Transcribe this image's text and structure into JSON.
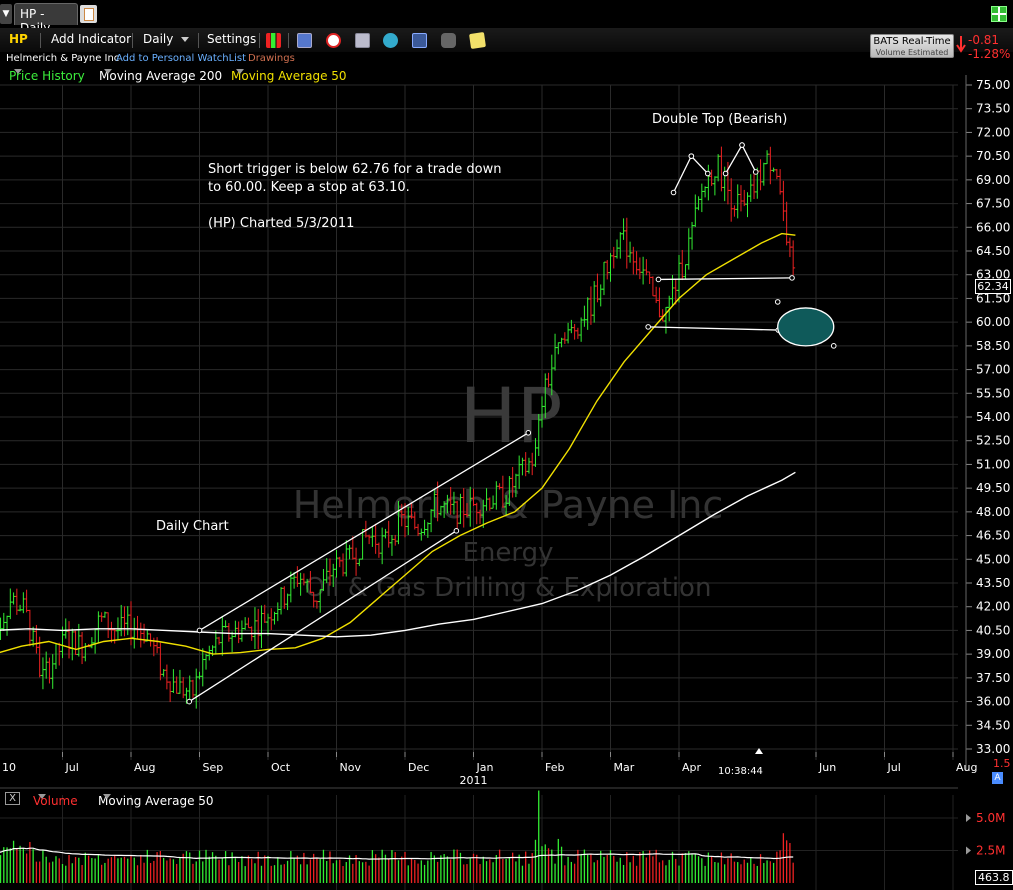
{
  "tab": {
    "title": "HP - Daily"
  },
  "toolbar": {
    "symbol": "HP",
    "add_indicator": "Add Indicator",
    "timeframe": "Daily",
    "settings": "Settings"
  },
  "subheader": {
    "company": "Helmerich & Payne Inc",
    "add_watchlist": "Add to Personal WatchList",
    "drawings": "Drawings"
  },
  "indicators": {
    "price_history": "Price History",
    "ma200": "Moving Average 200",
    "ma50": "Moving Average 50"
  },
  "realtime": {
    "label": "BATS Real-Time",
    "sub": "Volume Estimated",
    "change": "-0.81",
    "change_pct": "-1.28%"
  },
  "last_price": "62.34",
  "clock": "10:38:44",
  "watermark": {
    "symbol": "HP",
    "name": "Helmerich & Payne Inc",
    "sector": "Energy",
    "industry": "Oil & Gas Drilling & Exploration"
  },
  "annotations": {
    "pattern": "Double Top (Bearish)",
    "trigger_line1": "Short trigger is below 62.76 for a trade down",
    "trigger_line2": "to 60.00.  Keep a stop at 63.10.",
    "charted": "(HP) Charted 5/3/2011",
    "daily": "Daily Chart"
  },
  "volume_panel": {
    "label": "Volume",
    "ma": "Moving Average 50",
    "ticks": [
      "5.0M",
      "2.5M"
    ],
    "last": "463.8",
    "top_value": "1.5",
    "badge": "A"
  },
  "colors": {
    "up": "#33ee33",
    "down": "#ee2222",
    "ma50": "#f0e000",
    "ma200": "#ffffff",
    "target": "#0f5a5a"
  },
  "chart_data": {
    "type": "candlestick",
    "title": "HP - Daily",
    "y_ticks": [
      "75.00",
      "73.50",
      "72.00",
      "70.50",
      "69.00",
      "67.50",
      "66.00",
      "64.50",
      "63.00",
      "61.50",
      "60.00",
      "58.50",
      "57.00",
      "55.50",
      "54.00",
      "52.50",
      "51.00",
      "49.50",
      "48.00",
      "46.50",
      "45.00",
      "43.50",
      "42.00",
      "40.50",
      "39.00",
      "37.50",
      "36.00",
      "34.50",
      "33.00"
    ],
    "ylim": [
      33.0,
      75.0
    ],
    "x_ticks": [
      {
        "label": "10",
        "month": 0
      },
      {
        "label": "Jul",
        "month": 1
      },
      {
        "label": "Aug",
        "month": 2
      },
      {
        "label": "Sep",
        "month": 3
      },
      {
        "label": "Oct",
        "month": 4
      },
      {
        "label": "Nov",
        "month": 5
      },
      {
        "label": "Dec",
        "month": 6
      },
      {
        "label": "Jan",
        "month": 7
      },
      {
        "label": "Feb",
        "month": 8
      },
      {
        "label": "Mar",
        "month": 9
      },
      {
        "label": "Apr",
        "month": 10
      },
      {
        "label": "Jun",
        "month": 12
      },
      {
        "label": "Jul",
        "month": 13
      },
      {
        "label": "Aug",
        "month": 14
      }
    ],
    "year_label": "2011",
    "price_path": [
      [
        0.0,
        40.0
      ],
      [
        0.25,
        42.5
      ],
      [
        0.45,
        41.8
      ],
      [
        0.7,
        37.5
      ],
      [
        0.85,
        38.5
      ],
      [
        1.05,
        40.0
      ],
      [
        1.3,
        39.5
      ],
      [
        1.55,
        41.2
      ],
      [
        1.8,
        40.5
      ],
      [
        2.05,
        40.8
      ],
      [
        2.25,
        40.2
      ],
      [
        2.45,
        38.0
      ],
      [
        2.65,
        37.0
      ],
      [
        2.9,
        36.5
      ],
      [
        3.05,
        38.5
      ],
      [
        3.3,
        40.0
      ],
      [
        3.55,
        40.5
      ],
      [
        3.8,
        40.8
      ],
      [
        4.0,
        41.5
      ],
      [
        4.2,
        42.5
      ],
      [
        4.45,
        44.0
      ],
      [
        4.7,
        42.5
      ],
      [
        4.95,
        44.5
      ],
      [
        5.2,
        45.0
      ],
      [
        5.45,
        46.5
      ],
      [
        5.7,
        46.0
      ],
      [
        5.95,
        47.5
      ],
      [
        6.2,
        47.0
      ],
      [
        6.45,
        48.5
      ],
      [
        6.7,
        48.0
      ],
      [
        6.95,
        48.3
      ],
      [
        7.2,
        48.8
      ],
      [
        7.45,
        49.0
      ],
      [
        7.7,
        50.5
      ],
      [
        7.9,
        51.5
      ],
      [
        8.0,
        55.0
      ],
      [
        8.2,
        58.0
      ],
      [
        8.45,
        59.5
      ],
      [
        8.7,
        61.0
      ],
      [
        8.95,
        63.5
      ],
      [
        9.1,
        65.5
      ],
      [
        9.3,
        64.5
      ],
      [
        9.5,
        63.0
      ],
      [
        9.65,
        61.0
      ],
      [
        9.8,
        60.5
      ],
      [
        10.0,
        63.0
      ],
      [
        10.15,
        65.0
      ],
      [
        10.35,
        68.5
      ],
      [
        10.55,
        70.0
      ],
      [
        10.75,
        68.0
      ],
      [
        10.95,
        67.0
      ],
      [
        11.1,
        68.5
      ],
      [
        11.25,
        70.0
      ],
      [
        11.4,
        70.3
      ],
      [
        11.52,
        67.0
      ],
      [
        11.62,
        64.0
      ],
      [
        11.7,
        62.3
      ]
    ],
    "last": 62.34,
    "series": [
      {
        "name": "Moving Average 50",
        "values": [
          [
            0.0,
            39.0
          ],
          [
            0.4,
            39.5
          ],
          [
            0.8,
            39.8
          ],
          [
            1.2,
            39.3
          ],
          [
            1.6,
            39.8
          ],
          [
            2.0,
            40.0
          ],
          [
            2.4,
            39.8
          ],
          [
            2.8,
            39.5
          ],
          [
            3.2,
            39.0
          ],
          [
            3.6,
            39.1
          ],
          [
            4.0,
            39.3
          ],
          [
            4.4,
            39.4
          ],
          [
            4.8,
            40.0
          ],
          [
            5.2,
            41.0
          ],
          [
            5.6,
            42.5
          ],
          [
            6.0,
            44.0
          ],
          [
            6.4,
            45.5
          ],
          [
            6.8,
            46.5
          ],
          [
            7.2,
            47.3
          ],
          [
            7.6,
            48.0
          ],
          [
            8.0,
            49.5
          ],
          [
            8.4,
            52.0
          ],
          [
            8.8,
            55.0
          ],
          [
            9.2,
            57.5
          ],
          [
            9.6,
            59.5
          ],
          [
            10.0,
            61.5
          ],
          [
            10.4,
            63.0
          ],
          [
            10.8,
            64.0
          ],
          [
            11.2,
            65.0
          ],
          [
            11.5,
            65.6
          ],
          [
            11.7,
            65.5
          ]
        ]
      },
      {
        "name": "Moving Average 200",
        "values": [
          [
            0.0,
            40.5
          ],
          [
            0.5,
            40.6
          ],
          [
            1.0,
            40.5
          ],
          [
            1.5,
            40.6
          ],
          [
            2.0,
            40.6
          ],
          [
            2.5,
            40.5
          ],
          [
            3.0,
            40.4
          ],
          [
            3.5,
            40.3
          ],
          [
            4.0,
            40.3
          ],
          [
            4.5,
            40.2
          ],
          [
            5.0,
            40.1
          ],
          [
            5.5,
            40.2
          ],
          [
            6.0,
            40.5
          ],
          [
            6.5,
            40.9
          ],
          [
            7.0,
            41.2
          ],
          [
            7.5,
            41.7
          ],
          [
            8.0,
            42.2
          ],
          [
            8.5,
            43.0
          ],
          [
            9.0,
            44.0
          ],
          [
            9.5,
            45.2
          ],
          [
            10.0,
            46.5
          ],
          [
            10.5,
            47.8
          ],
          [
            11.0,
            49.0
          ],
          [
            11.5,
            50.0
          ],
          [
            11.7,
            50.5
          ]
        ]
      }
    ],
    "trendlines": [
      {
        "from": [
          3.0,
          40.5
        ],
        "to": [
          7.8,
          53.0
        ]
      },
      {
        "from": [
          2.85,
          36.0
        ],
        "to": [
          6.75,
          46.8
        ]
      },
      {
        "from": [
          9.7,
          62.7
        ],
        "to": [
          11.65,
          62.8
        ]
      },
      {
        "from": [
          9.55,
          59.7
        ],
        "to": [
          11.45,
          59.5
        ]
      },
      {
        "from": [
          9.92,
          68.2
        ],
        "to": [
          10.18,
          70.5
        ]
      },
      {
        "from": [
          10.18,
          70.5
        ],
        "to": [
          10.42,
          69.4
        ]
      },
      {
        "from": [
          10.68,
          69.4
        ],
        "to": [
          10.92,
          71.2
        ]
      },
      {
        "from": [
          10.92,
          71.2
        ],
        "to": [
          11.12,
          69.5
        ]
      }
    ],
    "target_zone": {
      "center": [
        11.85,
        59.7
      ],
      "price_halfrange": 1.2
    },
    "volume": {
      "ylim": [
        0,
        6.0
      ],
      "unit": "M",
      "ticks": [
        5.0,
        2.5
      ]
    }
  }
}
